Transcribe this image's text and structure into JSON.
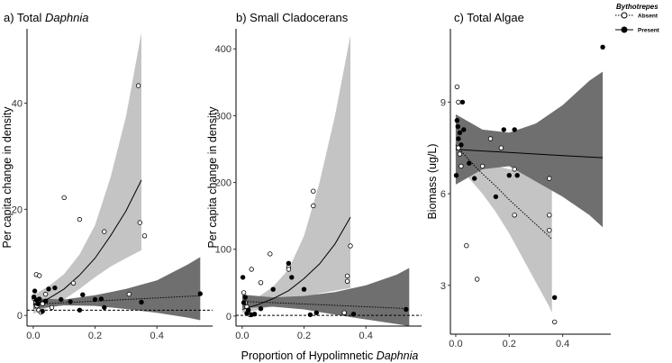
{
  "figure": {
    "xlabel_prefix": "Proportion of Hypolimnetic ",
    "xlabel_italic": "Daphnia",
    "legend_title": "Bythotrepes",
    "legend_items": [
      "Absent",
      "Present"
    ]
  },
  "colors": {
    "absent_band": "#c4c4c4",
    "present_band": "#6f6f6f",
    "open_point_fill": "#ffffff",
    "point_stroke": "#000000",
    "reference_line": "#000000"
  },
  "chart_data": [
    {
      "type": "scatter",
      "title_prefix": "a) Total ",
      "title_italic": "Daphnia",
      "xlabel": "Proportion of Hypolimnetic Daphnia",
      "ylabel": "Per capita change in density",
      "xlim": [
        -0.02,
        0.58
      ],
      "ylim": [
        -2,
        54
      ],
      "xticks": [
        0.0,
        0.2,
        0.4
      ],
      "xtick_labels": [
        "0.0",
        "0.2",
        "0.4"
      ],
      "yticks": [
        0,
        20,
        40
      ],
      "ytick_labels": [
        "0",
        "20",
        "40"
      ],
      "reference_hline": 1,
      "series": [
        {
          "name": "Absent",
          "marker": "open-circle",
          "line": "solid",
          "points": [
            [
              0.003,
              3.2
            ],
            [
              0.01,
              7.7
            ],
            [
              0.02,
              7.5
            ],
            [
              0.008,
              2.6
            ],
            [
              0.012,
              1.8
            ],
            [
              0.018,
              1.0
            ],
            [
              0.025,
              0.6
            ],
            [
              0.03,
              2.2
            ],
            [
              0.04,
              4.0
            ],
            [
              0.06,
              1.5
            ],
            [
              0.1,
              22.2
            ],
            [
              0.15,
              18.1
            ],
            [
              0.13,
              6.1
            ],
            [
              0.23,
              15.8
            ],
            [
              0.31,
              4.0
            ],
            [
              0.34,
              43.3
            ],
            [
              0.345,
              17.5
            ],
            [
              0.36,
              15.0
            ]
          ],
          "fit": {
            "x": [
              0.0,
              0.05,
              0.1,
              0.15,
              0.2,
              0.25,
              0.3,
              0.35
            ],
            "y": [
              2.0,
              3.2,
              5.0,
              7.6,
              10.8,
              15.0,
              19.7,
              25.5
            ]
          },
          "ci_lower": [
            0.3,
            1.5,
            3.0,
            5.0,
            7.2,
            9.2,
            10.8,
            12.3
          ],
          "ci_upper": [
            3.8,
            5.5,
            7.8,
            11.5,
            17.0,
            26.0,
            37.5,
            53.3
          ]
        },
        {
          "name": "Present",
          "marker": "filled-circle",
          "line": "dotted",
          "points": [
            [
              0.002,
              3.5
            ],
            [
              0.005,
              4.6
            ],
            [
              0.01,
              2.9
            ],
            [
              0.015,
              2.2
            ],
            [
              0.02,
              3.1
            ],
            [
              0.03,
              0.8
            ],
            [
              0.04,
              2.7
            ],
            [
              0.05,
              5.0
            ],
            [
              0.07,
              5.2
            ],
            [
              0.09,
              3.0
            ],
            [
              0.12,
              2.6
            ],
            [
              0.15,
              1.0
            ],
            [
              0.16,
              3.9
            ],
            [
              0.2,
              3.0
            ],
            [
              0.22,
              3.1
            ],
            [
              0.23,
              1.5
            ],
            [
              0.35,
              2.5
            ],
            [
              0.54,
              4.1
            ]
          ],
          "fit": {
            "x": [
              0.0,
              0.1,
              0.2,
              0.3,
              0.4,
              0.5,
              0.54
            ],
            "y": [
              2.1,
              2.4,
              2.7,
              3.0,
              3.3,
              3.6,
              3.7
            ]
          },
          "ci_lower": [
            1.2,
            1.9,
            1.8,
            1.2,
            0.5,
            -0.4,
            -0.9
          ],
          "ci_upper": [
            3.2,
            3.0,
            3.8,
            5.0,
            6.6,
            9.6,
            11.0
          ]
        }
      ]
    },
    {
      "type": "scatter",
      "title_prefix": "b) Small Cladocerans",
      "title_italic": "",
      "xlabel": "Proportion of Hypolimnetic Daphnia",
      "ylabel": "Per capita change in density",
      "xlim": [
        -0.02,
        0.58
      ],
      "ylim": [
        -15,
        430
      ],
      "xticks": [
        0.0,
        0.2,
        0.4
      ],
      "xtick_labels": [
        "0.0",
        "0.2",
        "0.4"
      ],
      "yticks": [
        0,
        100,
        200,
        300,
        400
      ],
      "ytick_labels": [
        "0",
        "100",
        "200",
        "300",
        "400"
      ],
      "reference_hline": 1,
      "series": [
        {
          "name": "Absent",
          "marker": "open-circle",
          "line": "solid",
          "points": [
            [
              0.005,
              35
            ],
            [
              0.01,
              20
            ],
            [
              0.015,
              14
            ],
            [
              0.02,
              5
            ],
            [
              0.025,
              2
            ],
            [
              0.03,
              70
            ],
            [
              0.06,
              50
            ],
            [
              0.09,
              93
            ],
            [
              0.15,
              73
            ],
            [
              0.15,
              70
            ],
            [
              0.23,
              187
            ],
            [
              0.23,
              165
            ],
            [
              0.34,
              60
            ],
            [
              0.34,
              52
            ],
            [
              0.35,
              105
            ],
            [
              0.33,
              5
            ]
          ],
          "fit": {
            "x": [
              0.0,
              0.05,
              0.1,
              0.15,
              0.2,
              0.25,
              0.3,
              0.35
            ],
            "y": [
              10,
              17,
              26,
              38,
              56,
              78,
              108,
              148
            ]
          },
          "ci_lower": [
            5,
            9,
            16,
            22,
            28,
            34,
            38,
            42
          ],
          "ci_upper": [
            20,
            28,
            44,
            70,
            120,
            200,
            300,
            420
          ]
        },
        {
          "name": "Present",
          "marker": "filled-circle",
          "line": "dotted",
          "points": [
            [
              0.002,
              58
            ],
            [
              0.005,
              20
            ],
            [
              0.01,
              28
            ],
            [
              0.015,
              4
            ],
            [
              0.02,
              9
            ],
            [
              0.03,
              2
            ],
            [
              0.04,
              3
            ],
            [
              0.06,
              11
            ],
            [
              0.1,
              40
            ],
            [
              0.15,
              79
            ],
            [
              0.16,
              58
            ],
            [
              0.2,
              40
            ],
            [
              0.22,
              2
            ],
            [
              0.24,
              5
            ],
            [
              0.36,
              3
            ],
            [
              0.53,
              10
            ]
          ],
          "fit": {
            "x": [
              0.0,
              0.1,
              0.2,
              0.3,
              0.4,
              0.5,
              0.54
            ],
            "y": [
              22,
              20,
              18,
              16,
              14,
              12,
              11
            ]
          },
          "ci_lower": [
            12,
            14,
            10,
            2,
            -5,
            -12,
            -15
          ],
          "ci_upper": [
            32,
            28,
            30,
            36,
            46,
            62,
            72
          ]
        }
      ]
    },
    {
      "type": "scatter",
      "title_prefix": "c) Total Algae",
      "title_italic": "",
      "xlabel": "Proportion of Hypolimnetic Daphnia",
      "ylabel": "Biomass (ug/L)",
      "xlim": [
        -0.02,
        0.58
      ],
      "ylim": [
        1.4,
        11.4
      ],
      "xticks": [
        0.0,
        0.2,
        0.4
      ],
      "xtick_labels": [
        "0.0",
        "0.2",
        "0.4"
      ],
      "yticks": [
        3,
        6,
        9
      ],
      "ytick_labels": [
        "3",
        "6",
        "9"
      ],
      "reference_hline": null,
      "series": [
        {
          "name": "Absent",
          "marker": "open-circle",
          "line": "dotted",
          "points": [
            [
              0.005,
              9.5
            ],
            [
              0.01,
              9.0
            ],
            [
              0.01,
              7.5
            ],
            [
              0.015,
              7.3
            ],
            [
              0.02,
              6.9
            ],
            [
              0.04,
              4.3
            ],
            [
              0.08,
              3.2
            ],
            [
              0.1,
              6.9
            ],
            [
              0.13,
              7.8
            ],
            [
              0.17,
              7.5
            ],
            [
              0.22,
              6.8
            ],
            [
              0.22,
              5.3
            ],
            [
              0.35,
              6.5
            ],
            [
              0.35,
              5.3
            ],
            [
              0.35,
              4.8
            ],
            [
              0.37,
              1.8
            ]
          ],
          "fit": {
            "x": [
              0.0,
              0.05,
              0.1,
              0.15,
              0.2,
              0.25,
              0.3,
              0.35,
              0.36
            ],
            "y": [
              7.6,
              7.1,
              6.65,
              6.25,
              5.8,
              5.4,
              5.0,
              4.6,
              4.5
            ]
          },
          "ci_lower": [
            7.0,
            6.5,
            6.0,
            5.4,
            4.7,
            3.9,
            3.1,
            2.3,
            2.1
          ],
          "ci_upper": [
            8.2,
            7.6,
            7.2,
            6.9,
            6.8,
            6.7,
            6.7,
            6.8,
            6.8
          ]
        },
        {
          "name": "Present",
          "marker": "filled-circle",
          "line": "solid",
          "points": [
            [
              0.002,
              6.6
            ],
            [
              0.005,
              8.4
            ],
            [
              0.008,
              8.2
            ],
            [
              0.01,
              7.8
            ],
            [
              0.015,
              8.0
            ],
            [
              0.02,
              7.6
            ],
            [
              0.025,
              9.0
            ],
            [
              0.03,
              8.1
            ],
            [
              0.05,
              7.0
            ],
            [
              0.07,
              6.5
            ],
            [
              0.15,
              5.9
            ],
            [
              0.18,
              8.1
            ],
            [
              0.2,
              6.6
            ],
            [
              0.22,
              8.1
            ],
            [
              0.23,
              6.6
            ],
            [
              0.37,
              2.6
            ],
            [
              0.55,
              10.8
            ]
          ],
          "fit": {
            "x": [
              0.0,
              0.1,
              0.2,
              0.3,
              0.4,
              0.5,
              0.55
            ],
            "y": [
              7.45,
              7.4,
              7.35,
              7.3,
              7.25,
              7.2,
              7.18
            ]
          },
          "ci_lower": [
            6.3,
            6.8,
            6.9,
            6.4,
            5.9,
            5.3,
            4.9
          ],
          "ci_upper": [
            8.6,
            8.1,
            8.0,
            8.3,
            8.9,
            9.7,
            10.0
          ]
        }
      ]
    }
  ]
}
